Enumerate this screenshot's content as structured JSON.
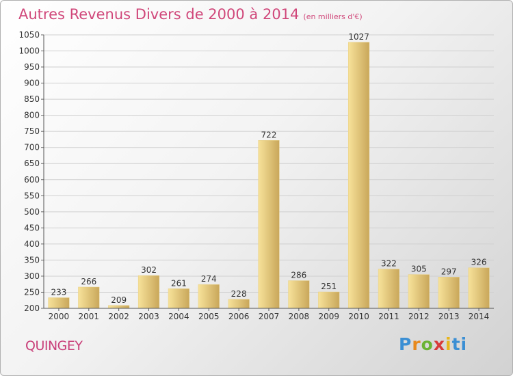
{
  "title": {
    "main": "Autres Revenus Divers de 2000 à 2014",
    "unit": "(en milliers d'€)"
  },
  "commune": "QUINGEY",
  "logo": {
    "text": "Proxiti",
    "letters": [
      "P",
      "r",
      "o",
      "x",
      "i",
      "t",
      "i"
    ]
  },
  "colors": {
    "title": "#d0477a",
    "bar_light": "#f7e29a",
    "bar_dark": "#c9a75a",
    "grid": "#cfcfcf"
  },
  "chart_data": {
    "type": "bar",
    "title": "Autres Revenus Divers de 2000 à 2014",
    "subtitle": "(en milliers d'€)",
    "xlabel": "",
    "ylabel": "",
    "categories": [
      "2000",
      "2001",
      "2002",
      "2003",
      "2004",
      "2005",
      "2006",
      "2007",
      "2008",
      "2009",
      "2010",
      "2011",
      "2012",
      "2013",
      "2014"
    ],
    "values": [
      233,
      266,
      209,
      302,
      261,
      274,
      228,
      722,
      286,
      251,
      1027,
      322,
      305,
      297,
      326
    ],
    "ylim": [
      200,
      1050
    ],
    "yticks": [
      200,
      250,
      300,
      350,
      400,
      450,
      500,
      550,
      600,
      650,
      700,
      750,
      800,
      850,
      900,
      950,
      1000,
      1050
    ],
    "grid": true
  }
}
